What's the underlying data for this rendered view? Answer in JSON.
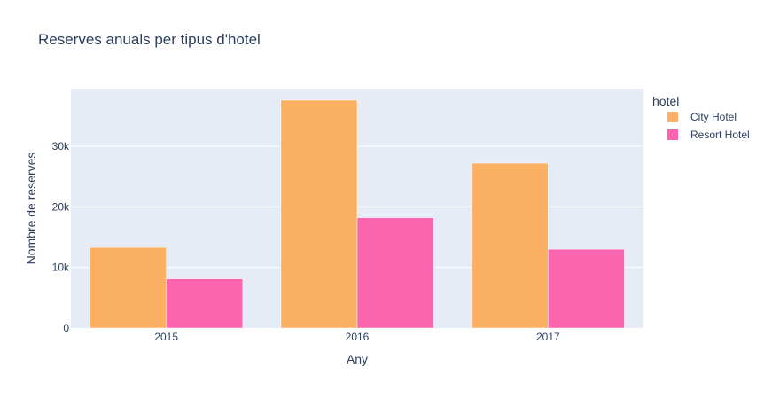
{
  "chart_data": {
    "type": "bar",
    "title": "Reserves anuals per tipus d'hotel",
    "xlabel": "Any",
    "ylabel": "Nombre de reserves",
    "categories": [
      "2015",
      "2016",
      "2017"
    ],
    "series": [
      {
        "name": "City Hotel",
        "values": [
          13300,
          37600,
          27200
        ],
        "color": "#fbb064"
      },
      {
        "name": "Resort Hotel",
        "values": [
          8100,
          18200,
          13000
        ],
        "color": "#fb64ae"
      }
    ],
    "ylim": [
      0,
      39500
    ],
    "yticks": [
      0,
      10000,
      20000,
      30000
    ],
    "ytick_labels": [
      "0",
      "10k",
      "20k",
      "30k"
    ],
    "legend_title": "hotel",
    "legend_position": "top-right",
    "grid": true,
    "colors": {
      "plot_bg": "#e5ecf6",
      "grid": "#ffffff",
      "text": "#2a3f5f"
    }
  }
}
